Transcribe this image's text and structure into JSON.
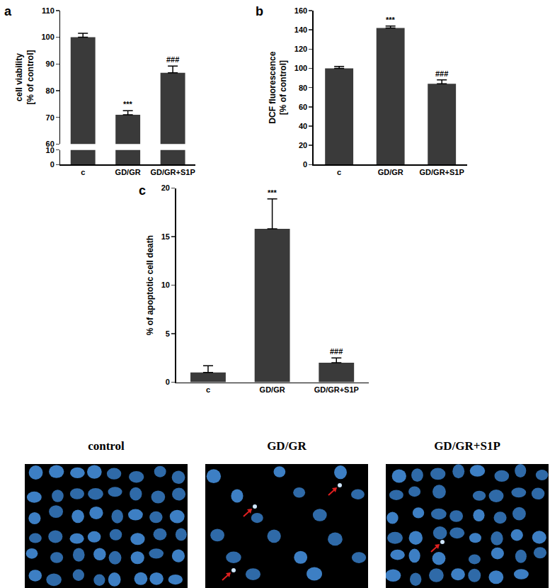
{
  "chart_data": [
    {
      "type": "bar",
      "title": "a",
      "categories": [
        "c",
        "GD/GR",
        "GD/GR+S1P"
      ],
      "values": [
        100,
        71,
        86.7
      ],
      "errors": [
        1.5,
        1.5,
        2.5
      ],
      "color": "#3a3a3a",
      "y_label": "cell viability\n[% of control]",
      "ylim": [
        0,
        110
      ],
      "yticks": [
        0,
        10,
        60,
        70,
        80,
        90,
        100,
        110
      ],
      "grid": false,
      "annotations": [
        {
          "category": "GD/GR",
          "text": "***"
        },
        {
          "category": "GD/GR+S1P",
          "text": "###"
        }
      ]
    },
    {
      "type": "bar",
      "title": "b",
      "categories": [
        "c",
        "GD/GR",
        "GD/GR+S1P"
      ],
      "values": [
        100,
        142,
        84
      ],
      "errors": [
        2,
        2,
        4
      ],
      "color": "#3a3a3a",
      "y_label": "DCF fluorescence\n[% of control]",
      "ylim": [
        0,
        160
      ],
      "yticks": [
        0,
        20,
        40,
        60,
        80,
        100,
        120,
        140,
        160
      ],
      "grid": false,
      "annotations": [
        {
          "category": "GD/GR",
          "text": "***"
        },
        {
          "category": "GD/GR+S1P",
          "text": "###"
        }
      ]
    },
    {
      "type": "bar",
      "title": "c",
      "categories": [
        "c",
        "GD/GR",
        "GD/GR+S1P"
      ],
      "values": [
        1.0,
        15.8,
        2.0
      ],
      "errors": [
        0.7,
        3.1,
        0.5
      ],
      "color": "#3a3a3a",
      "y_label": "% of apoptotic cell death",
      "ylim": [
        0,
        20
      ],
      "yticks": [
        0,
        5,
        10,
        15,
        20
      ],
      "grid": false,
      "annotations": [
        {
          "category": "GD/GR",
          "text": "***"
        },
        {
          "category": "GD/GR+S1P",
          "text": "###"
        }
      ]
    }
  ],
  "micrographs": [
    {
      "title": "control"
    },
    {
      "title": "GD/GR"
    },
    {
      "title": "GD/GR+S1P"
    }
  ]
}
